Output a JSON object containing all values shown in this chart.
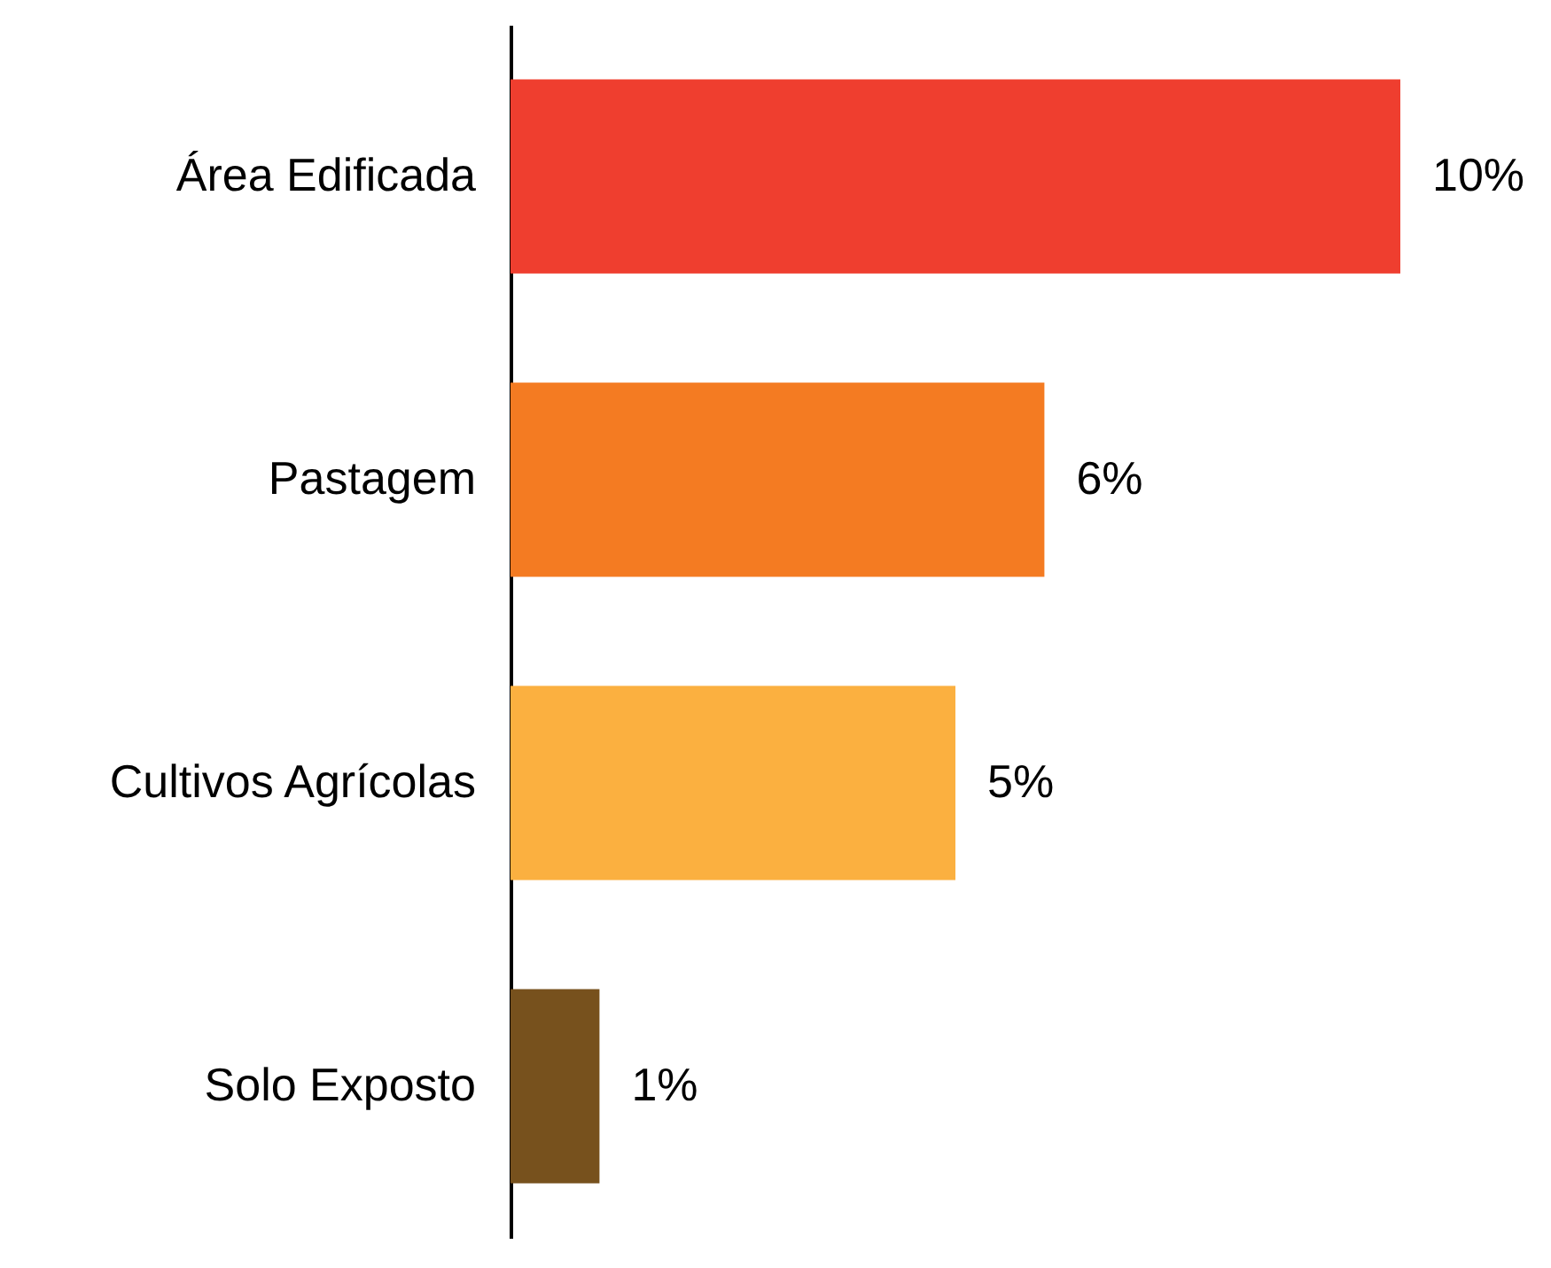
{
  "chart_data": {
    "type": "bar",
    "orientation": "horizontal",
    "categories": [
      "Área Edificada",
      "Pastagem",
      "Cultivos Agrícolas",
      "Solo Exposto"
    ],
    "values": [
      10,
      6,
      5,
      1
    ],
    "colors": [
      "#ef3e2f",
      "#f47b22",
      "#fbb040",
      "#77511d"
    ],
    "value_labels": [
      "10%",
      "6%",
      "5%",
      "1%"
    ],
    "grid": false
  }
}
